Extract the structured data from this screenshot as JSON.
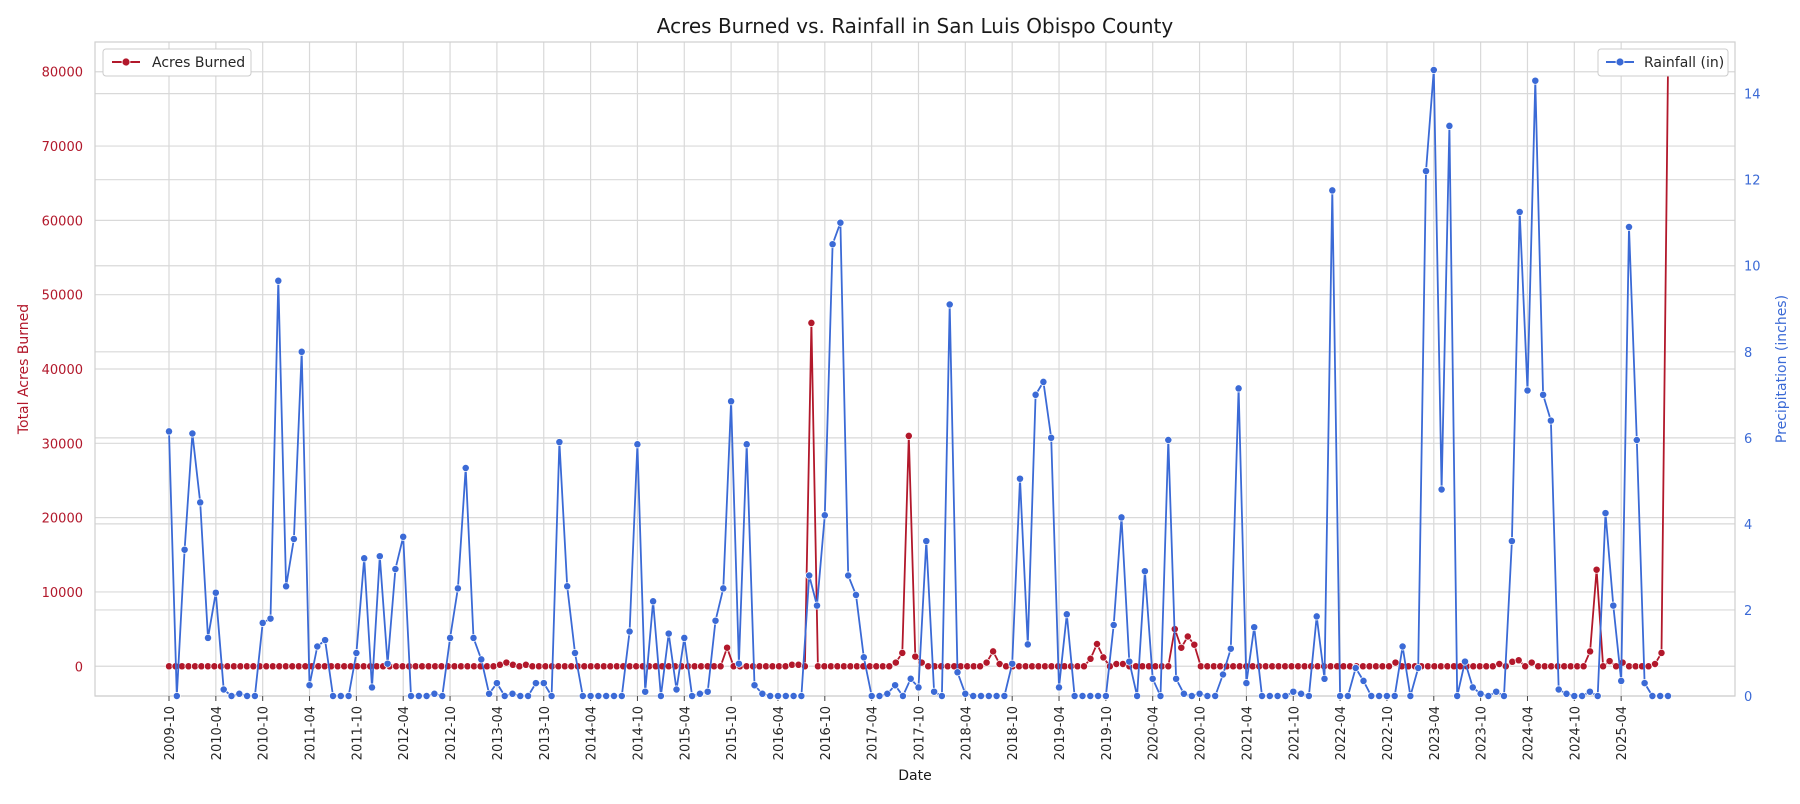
{
  "chart_data": {
    "type": "line",
    "title": "Acres Burned vs. Rainfall in San Luis Obispo County",
    "xlabel": "Date",
    "ylabel_left": "Total Acres Burned",
    "ylabel_right": "Precipitation (inches)",
    "x_start": "2009-10",
    "x_end": "2025-10",
    "x_ticks": [
      "2009-10",
      "2010-04",
      "2010-10",
      "2011-04",
      "2011-10",
      "2012-04",
      "2012-10",
      "2013-04",
      "2013-10",
      "2014-04",
      "2014-10",
      "2015-04",
      "2015-10",
      "2016-04",
      "2016-10",
      "2017-04",
      "2017-10",
      "2018-04",
      "2018-10",
      "2019-04",
      "2019-10",
      "2020-04",
      "2020-10",
      "2021-04",
      "2021-10",
      "2022-04",
      "2022-10",
      "2023-04",
      "2023-10",
      "2024-04",
      "2024-10",
      "2025-04"
    ],
    "ylim_left": [
      -4000,
      84000
    ],
    "yticks_left": [
      0,
      10000,
      20000,
      30000,
      40000,
      50000,
      60000,
      70000,
      80000
    ],
    "ylim_right": [
      0,
      15.2
    ],
    "yticks_right": [
      0,
      2,
      4,
      6,
      8,
      10,
      12,
      14
    ],
    "grid": true,
    "legend_left": "top-left",
    "legend_right": "top-right",
    "colors": {
      "acres": "#b2182b",
      "rain": "#3b6ad6"
    },
    "series": [
      {
        "name": "Acres Burned",
        "axis": "left",
        "values": [
          0,
          0,
          0,
          0,
          0,
          0,
          0,
          0,
          0,
          0,
          0,
          0,
          0,
          0,
          0,
          0,
          0,
          0,
          0,
          0,
          0,
          0,
          0,
          0,
          0,
          0,
          0,
          0,
          0,
          0,
          0,
          0,
          0,
          0,
          0,
          0,
          0,
          0,
          0,
          0,
          0,
          0,
          0,
          0,
          0,
          0,
          0,
          0,
          0,
          0,
          0,
          200,
          500,
          200,
          0,
          200,
          0,
          0,
          0,
          0,
          0,
          0,
          0,
          0,
          0,
          0,
          0,
          0,
          0,
          0,
          0,
          0,
          0,
          0,
          0,
          0,
          0,
          0,
          0,
          0,
          0,
          0,
          0,
          0,
          0,
          0,
          2500,
          0,
          0,
          0,
          0,
          0,
          0,
          0,
          0,
          0,
          200,
          200,
          0,
          46200,
          0,
          0,
          0,
          0,
          0,
          0,
          0,
          0,
          0,
          0,
          0,
          0,
          500,
          1800,
          31000,
          1300,
          500,
          0,
          0,
          0,
          0,
          0,
          0,
          0,
          0,
          0,
          500,
          2000,
          300,
          0,
          0,
          0,
          0,
          0,
          0,
          0,
          0,
          0,
          0,
          0,
          0,
          0,
          1000,
          3000,
          1200,
          0,
          300,
          300,
          0,
          0,
          0,
          0,
          0,
          0,
          0,
          5000,
          2500,
          4000,
          2900,
          0,
          0,
          0,
          0,
          0,
          0,
          0,
          0,
          0,
          0,
          0,
          0,
          0,
          0,
          0,
          0,
          0,
          0,
          0,
          0,
          0,
          0,
          0,
          0,
          0,
          0,
          0,
          0,
          0,
          0,
          500,
          0,
          0,
          0,
          0,
          0,
          0,
          0,
          0,
          0,
          0,
          0,
          0,
          0,
          0,
          0,
          300,
          0,
          600,
          800,
          0,
          500,
          0,
          0,
          0,
          0,
          0,
          0,
          0,
          0,
          2000,
          13000,
          0,
          700,
          0,
          500,
          0,
          0,
          0,
          0,
          300,
          1800,
          80500
        ]
      },
      {
        "name": "Rainfall (in)",
        "axis": "right",
        "values": [
          6.15,
          0,
          3.4,
          6.1,
          4.5,
          1.35,
          2.4,
          0.15,
          0,
          0.05,
          0,
          0,
          1.7,
          1.8,
          9.65,
          2.55,
          3.65,
          8.0,
          0.25,
          1.15,
          1.3,
          0,
          0,
          0,
          1.0,
          3.2,
          0.2,
          3.25,
          0.75,
          2.95,
          3.7,
          0,
          0,
          0,
          0.05,
          0,
          1.35,
          2.5,
          5.3,
          1.35,
          0.85,
          0.05,
          0.3,
          0,
          0.05,
          0,
          0,
          0.3,
          0.3,
          0,
          5.9,
          2.55,
          1.0,
          0,
          0,
          0,
          0,
          0,
          0,
          1.5,
          5.85,
          0.1,
          2.2,
          0,
          1.45,
          0.15,
          1.35,
          0,
          0.05,
          0.1,
          1.75,
          2.5,
          6.85,
          0.75,
          5.85,
          0.25,
          0.05,
          0,
          0,
          0,
          0,
          0,
          2.8,
          2.1,
          4.2,
          10.5,
          11.0,
          2.8,
          2.35,
          0.9,
          0,
          0,
          0.05,
          0.25,
          0,
          0.4,
          0.2,
          3.6,
          0.1,
          0,
          9.1,
          0.55,
          0.05,
          0,
          0,
          0,
          0,
          0,
          0.75,
          5.05,
          1.2,
          7.0,
          7.3,
          6.0,
          0.2,
          1.9,
          0,
          0,
          0,
          0,
          0,
          1.65,
          4.15,
          0.8,
          0,
          2.9,
          0.4,
          0,
          5.95,
          0.4,
          0.05,
          0,
          0.05,
          0,
          0,
          0.5,
          1.1,
          7.15,
          0.3,
          1.6,
          0,
          0,
          0,
          0,
          0.1,
          0.05,
          0,
          1.85,
          0.4,
          11.75,
          0,
          0,
          0.65,
          0.35,
          0,
          0,
          0,
          0,
          1.15,
          0,
          0.65,
          12.2,
          14.55,
          4.8,
          13.25,
          0,
          0.8,
          0.2,
          0.05,
          0,
          0.1,
          0,
          3.6,
          11.25,
          7.1,
          14.3,
          7.0,
          6.4,
          0.15,
          0.05,
          0,
          0,
          0.1,
          0,
          4.25,
          2.1,
          0.35,
          10.9,
          5.95,
          0.3,
          0,
          0,
          0
        ]
      }
    ]
  }
}
